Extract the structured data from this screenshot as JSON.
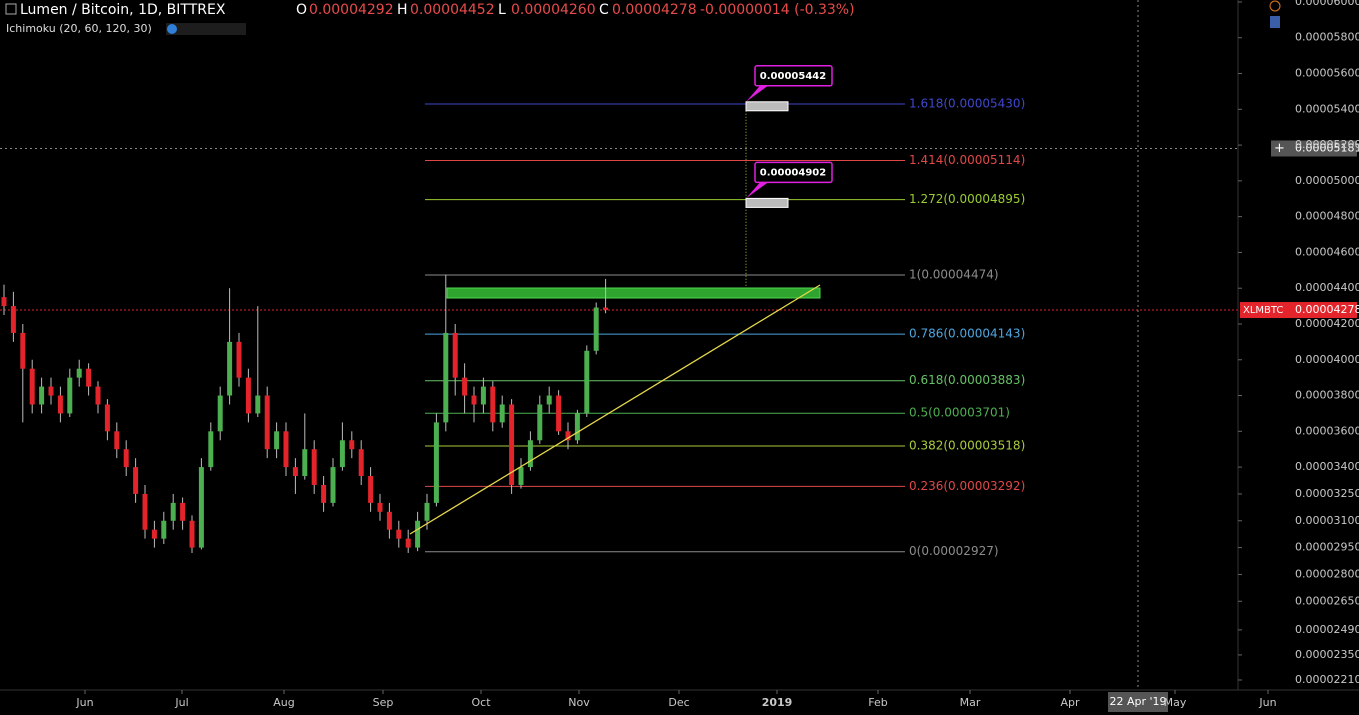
{
  "chart_data": {
    "type": "candlestick",
    "title": "Lumen / Bitcoin, 1D, BITTREX",
    "ohlc_header": [
      {
        "key": "O",
        "text": "0.00004292"
      },
      {
        "key": "H",
        "text": "0.00004452"
      },
      {
        "key": "L",
        "text": "0.00004260"
      },
      {
        "key": "C",
        "text": "0.00004278"
      }
    ],
    "change_text": "-0.00000014 (-0.33%)",
    "indicator": "Ichimoku (20, 60, 120, 30)",
    "up_color": "#4caf50",
    "down_color": "#e3242b",
    "wick_color": "#bdbdbd",
    "ylim": [
      2.154e-05,
      6.011e-05
    ],
    "yticks": [
      {
        "value": 6e-05,
        "label": "0.00006000"
      },
      {
        "value": 5.8e-05,
        "label": "0.00005800"
      },
      {
        "value": 5.6e-05,
        "label": "0.00005600"
      },
      {
        "value": 5.4e-05,
        "label": "0.00005400"
      },
      {
        "value": 5.2e-05,
        "label": "0.00005200"
      },
      {
        "value": 5e-05,
        "label": "0.00005000"
      },
      {
        "value": 4.8e-05,
        "label": "0.00004800"
      },
      {
        "value": 4.6e-05,
        "label": "0.00004600"
      },
      {
        "value": 4.4e-05,
        "label": "0.00004400"
      },
      {
        "value": 4.2e-05,
        "label": "0.00004200"
      },
      {
        "value": 4e-05,
        "label": "0.00004000"
      },
      {
        "value": 3.8e-05,
        "label": "0.00003800"
      },
      {
        "value": 3.6e-05,
        "label": "0.00003600"
      },
      {
        "value": 3.4e-05,
        "label": "0.00003400"
      },
      {
        "value": 3.25e-05,
        "label": "0.00003250"
      },
      {
        "value": 3.1e-05,
        "label": "0.00003100"
      },
      {
        "value": 2.95e-05,
        "label": "0.00002950"
      },
      {
        "value": 2.8e-05,
        "label": "0.00002800"
      },
      {
        "value": 2.65e-05,
        "label": "0.00002650"
      },
      {
        "value": 2.49e-05,
        "label": "0.00002490"
      },
      {
        "value": 2.35e-05,
        "label": "0.00002350"
      },
      {
        "value": 2.21e-05,
        "label": "0.00002210"
      }
    ],
    "xticks": [
      "Jun",
      "Jul",
      "Aug",
      "Sep",
      "Oct",
      "Nov",
      "Dec",
      "2019",
      "Feb",
      "Mar",
      "Apr",
      "May",
      "Jun"
    ],
    "candles": [
      [
        4.35e-05,
        4.42e-05,
        4.25e-05,
        4.3e-05
      ],
      [
        4.3e-05,
        4.38e-05,
        4.1e-05,
        4.15e-05
      ],
      [
        4.15e-05,
        4.2e-05,
        3.65e-05,
        3.95e-05
      ],
      [
        3.95e-05,
        4e-05,
        3.7e-05,
        3.75e-05
      ],
      [
        3.75e-05,
        3.9e-05,
        3.7e-05,
        3.85e-05
      ],
      [
        3.85e-05,
        3.9e-05,
        3.75e-05,
        3.8e-05
      ],
      [
        3.8e-05,
        3.85e-05,
        3.65e-05,
        3.7e-05
      ],
      [
        3.7e-05,
        3.95e-05,
        3.68e-05,
        3.9e-05
      ],
      [
        3.9e-05,
        4e-05,
        3.85e-05,
        3.95e-05
      ],
      [
        3.95e-05,
        3.98e-05,
        3.8e-05,
        3.85e-05
      ],
      [
        3.85e-05,
        3.88e-05,
        3.7e-05,
        3.75e-05
      ],
      [
        3.75e-05,
        3.78e-05,
        3.55e-05,
        3.6e-05
      ],
      [
        3.6e-05,
        3.65e-05,
        3.45e-05,
        3.5e-05
      ],
      [
        3.5e-05,
        3.55e-05,
        3.35e-05,
        3.4e-05
      ],
      [
        3.4e-05,
        3.45e-05,
        3.2e-05,
        3.25e-05
      ],
      [
        3.25e-05,
        3.3e-05,
        3e-05,
        3.05e-05
      ],
      [
        3.05e-05,
        3.1e-05,
        2.95e-05,
        3e-05
      ],
      [
        3e-05,
        3.15e-05,
        2.97e-05,
        3.1e-05
      ],
      [
        3.1e-05,
        3.25e-05,
        3.05e-05,
        3.2e-05
      ],
      [
        3.2e-05,
        3.23e-05,
        3.05e-05,
        3.1e-05
      ],
      [
        3.1e-05,
        3.13e-05,
        2.92e-05,
        2.95e-05
      ],
      [
        2.95e-05,
        3.45e-05,
        2.94e-05,
        3.4e-05
      ],
      [
        3.4e-05,
        3.65e-05,
        3.38e-05,
        3.6e-05
      ],
      [
        3.6e-05,
        3.85e-05,
        3.55e-05,
        3.8e-05
      ],
      [
        3.8e-05,
        4.4e-05,
        3.75e-05,
        4.1e-05
      ],
      [
        4.1e-05,
        4.15e-05,
        3.85e-05,
        3.9e-05
      ],
      [
        3.9e-05,
        3.95e-05,
        3.65e-05,
        3.7e-05
      ],
      [
        3.7e-05,
        4.3e-05,
        3.68e-05,
        3.8e-05
      ],
      [
        3.8e-05,
        3.85e-05,
        3.45e-05,
        3.5e-05
      ],
      [
        3.5e-05,
        3.65e-05,
        3.45e-05,
        3.6e-05
      ],
      [
        3.6e-05,
        3.65e-05,
        3.35e-05,
        3.4e-05
      ],
      [
        3.4e-05,
        3.45e-05,
        3.25e-05,
        3.35e-05
      ],
      [
        3.35e-05,
        3.7e-05,
        3.33e-05,
        3.5e-05
      ],
      [
        3.5e-05,
        3.55e-05,
        3.25e-05,
        3.3e-05
      ],
      [
        3.3e-05,
        3.35e-05,
        3.15e-05,
        3.2e-05
      ],
      [
        3.2e-05,
        3.45e-05,
        3.18e-05,
        3.4e-05
      ],
      [
        3.4e-05,
        3.65e-05,
        3.38e-05,
        3.55e-05
      ],
      [
        3.55e-05,
        3.6e-05,
        3.45e-05,
        3.5e-05
      ],
      [
        3.5e-05,
        3.55e-05,
        3.3e-05,
        3.35e-05
      ],
      [
        3.35e-05,
        3.4e-05,
        3.15e-05,
        3.2e-05
      ],
      [
        3.2e-05,
        3.25e-05,
        3.1e-05,
        3.15e-05
      ],
      [
        3.15e-05,
        3.2e-05,
        3e-05,
        3.05e-05
      ],
      [
        3.05e-05,
        3.1e-05,
        2.95e-05,
        3e-05
      ],
      [
        3e-05,
        3.05e-05,
        2.92e-05,
        2.95e-05
      ],
      [
        2.95e-05,
        3.15e-05,
        2.93e-05,
        3.1e-05
      ],
      [
        3.1e-05,
        3.25e-05,
        3.05e-05,
        3.2e-05
      ],
      [
        3.2e-05,
        3.7e-05,
        3.18e-05,
        3.65e-05
      ],
      [
        3.65e-05,
        4.474e-05,
        3.6e-05,
        4.15e-05
      ],
      [
        4.15e-05,
        4.2e-05,
        3.8e-05,
        3.9e-05
      ],
      [
        3.9e-05,
        3.98e-05,
        3.7e-05,
        3.8e-05
      ],
      [
        3.8e-05,
        3.85e-05,
        3.65e-05,
        3.75e-05
      ],
      [
        3.75e-05,
        3.9e-05,
        3.7e-05,
        3.85e-05
      ],
      [
        3.85e-05,
        3.88e-05,
        3.6e-05,
        3.65e-05
      ],
      [
        3.65e-05,
        3.8e-05,
        3.62e-05,
        3.75e-05
      ],
      [
        3.75e-05,
        3.78e-05,
        3.25e-05,
        3.3e-05
      ],
      [
        3.3e-05,
        3.45e-05,
        3.28e-05,
        3.4e-05
      ],
      [
        3.4e-05,
        3.6e-05,
        3.38e-05,
        3.55e-05
      ],
      [
        3.55e-05,
        3.8e-05,
        3.53e-05,
        3.75e-05
      ],
      [
        3.75e-05,
        3.85e-05,
        3.7e-05,
        3.8e-05
      ],
      [
        3.8e-05,
        3.83e-05,
        3.58e-05,
        3.6e-05
      ],
      [
        3.6e-05,
        3.65e-05,
        3.5e-05,
        3.55e-05
      ],
      [
        3.55e-05,
        3.72e-05,
        3.53e-05,
        3.7e-05
      ],
      [
        3.7e-05,
        4.08e-05,
        3.68e-05,
        4.05e-05
      ],
      [
        4.05e-05,
        4.32e-05,
        4.03e-05,
        4.292e-05
      ],
      [
        4.292e-05,
        4.452e-05,
        4.26e-05,
        4.278e-05
      ]
    ],
    "fib_levels": [
      {
        "label": "1.618(0.00005430)",
        "value": 5.43e-05,
        "color": "#3f48cc"
      },
      {
        "label": "1.414(0.00005114)",
        "value": 5.114e-05,
        "color": "#e04848"
      },
      {
        "label": "1.272(0.00004895)",
        "value": 4.895e-05,
        "color": "#9acd32"
      },
      {
        "label": "1(0.00004474)",
        "value": 4.474e-05,
        "color": "#8c8c8c"
      },
      {
        "label": "0.786(0.00004143)",
        "value": 4.143e-05,
        "color": "#4ea6e0"
      },
      {
        "label": "0.618(0.00003883)",
        "value": 3.883e-05,
        "color": "#66c266"
      },
      {
        "label": "0.5(0.00003701)",
        "value": 3.701e-05,
        "color": "#4caf50"
      },
      {
        "label": "0.382(0.00003518)",
        "value": 3.518e-05,
        "color": "#a8cc3a"
      },
      {
        "label": "0.236(0.00003292)",
        "value": 3.292e-05,
        "color": "#e04848"
      },
      {
        "label": "0(0.00002927)",
        "value": 2.927e-05,
        "color": "#8c8c8c"
      }
    ],
    "callouts": [
      {
        "text": "0.00005442",
        "value": 5.442e-05
      },
      {
        "text": "0.00004902",
        "value": 4.902e-05
      }
    ],
    "last_price": {
      "symbol": "XLMBTC",
      "text": "0.00004278",
      "value": 4.278e-05
    },
    "crosshair": {
      "text": "0.00005181",
      "value": 5.181e-05
    },
    "crosshair_date": "22 Apr '19"
  }
}
